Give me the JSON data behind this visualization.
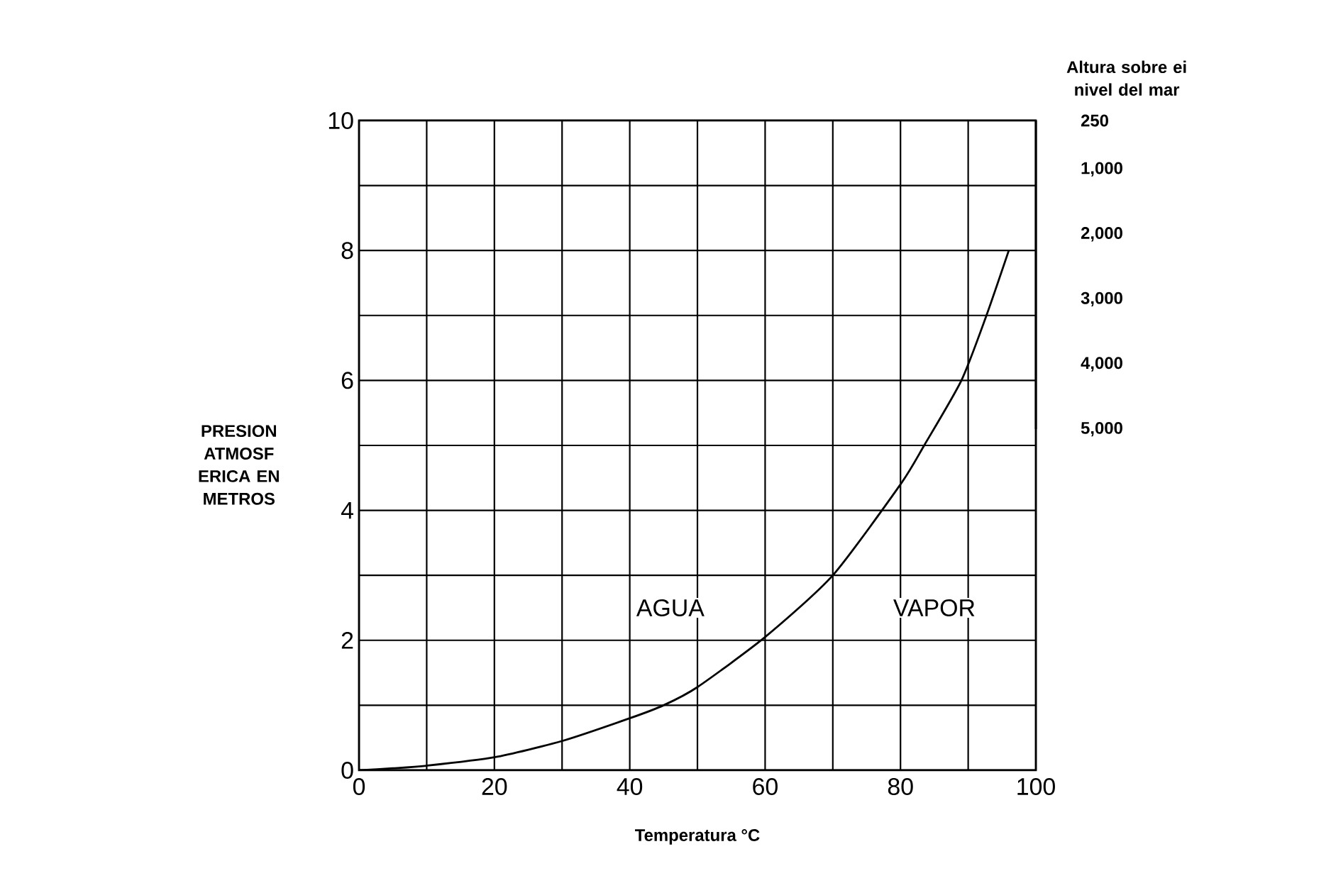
{
  "chart_data": {
    "type": "line",
    "xlabel": "Temperatura °C",
    "ylabel": "PRESION ATMOSF ERICA EN METROS",
    "y2label": "Altura sobre ei nivel del mar",
    "x": [
      0,
      5,
      10,
      20,
      30,
      40,
      45,
      50,
      60,
      70,
      80,
      83.5,
      89,
      92.7,
      96
    ],
    "series": [
      {
        "color": "#000000",
        "values": [
          0,
          0.03,
          0.07,
          0.2,
          0.45,
          0.8,
          1.0,
          1.28,
          2.05,
          3.0,
          4.4,
          5.0,
          6.0,
          7.0,
          8.0
        ]
      }
    ],
    "xlim": [
      0,
      100
    ],
    "ylim": [
      0,
      10
    ],
    "xticks": [
      0,
      20,
      40,
      60,
      80,
      100
    ],
    "yticks": [
      0,
      2,
      4,
      6,
      8,
      10
    ],
    "y2lim": [
      5000,
      250
    ],
    "y2ticks": [
      250,
      {
        "value": 1000,
        "label": "1,000"
      },
      {
        "value": 2000,
        "label": "2,000"
      },
      {
        "value": 3000,
        "label": "3,000"
      },
      {
        "value": 4000,
        "label": "4,000"
      },
      {
        "value": 5000,
        "label": "5,000"
      }
    ],
    "annotations": [
      "AGUA",
      "VAPOR"
    ],
    "grid": true
  }
}
